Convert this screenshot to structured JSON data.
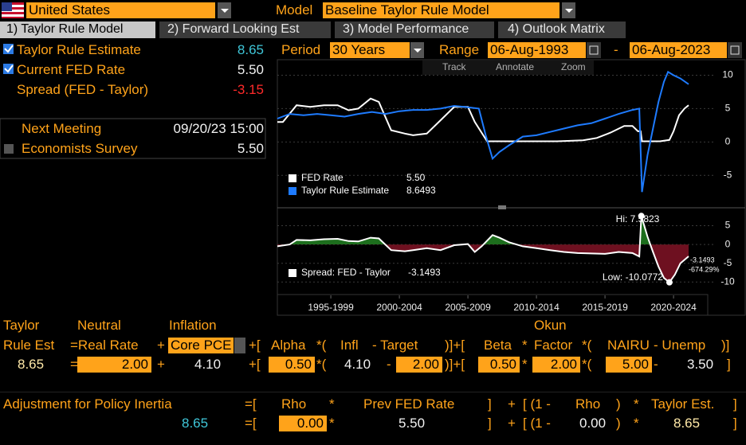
{
  "header": {
    "country": "United States",
    "model_label": "Model",
    "model": "Baseline Taylor Rule Model"
  },
  "tabs": [
    "1) Taylor Rule Model",
    "2) Forward Looking Est",
    "3) Model Performance",
    "4) Outlook Matrix"
  ],
  "summary": {
    "rows": [
      {
        "label": "Taylor Rule Estimate",
        "value": "8.65"
      },
      {
        "label": "Current FED Rate",
        "value": "5.50"
      },
      {
        "label": "Spread (FED - Taylor)",
        "value": "-3.15"
      }
    ],
    "next_meeting": {
      "label": "Next Meeting",
      "value": "09/20/23 15:00"
    },
    "survey": {
      "label": "Economists Survey",
      "value": "5.50"
    }
  },
  "controls": {
    "period_label": "Period",
    "period": "30 Years",
    "range_label": "Range",
    "start": "06-Aug-1993",
    "dash": "-",
    "end": "06-Aug-2023",
    "tools": [
      "Track",
      "Annotate",
      "Zoom"
    ]
  },
  "chart_data": [
    {
      "type": "line",
      "xlim": [
        1993.6,
        2023.6
      ],
      "ylim": [
        -9.5,
        12.2
      ],
      "yticks": [
        10,
        5,
        0,
        -5
      ],
      "grid": true,
      "series": [
        {
          "name": "FED Rate",
          "color": "#ffffff",
          "legend_value": "5.50",
          "x": [
            1993.6,
            1994.0,
            1994.5,
            1995.0,
            1996.0,
            1997.0,
            1998.0,
            1998.8,
            1999.5,
            2000.4,
            2001.0,
            2001.9,
            2002.9,
            2003.5,
            2004.5,
            2005.5,
            2006.5,
            2007.5,
            2008.0,
            2008.9,
            2010.0,
            2012.0,
            2014.0,
            2015.9,
            2016.9,
            2017.9,
            2018.9,
            2019.5,
            2019.9,
            2020.1,
            2020.2,
            2021.5,
            2022.2,
            2022.5,
            2022.9,
            2023.3,
            2023.6
          ],
          "values": [
            3.0,
            3.0,
            4.25,
            5.5,
            5.25,
            5.5,
            5.5,
            4.75,
            5.0,
            6.5,
            6.0,
            1.75,
            1.25,
            1.0,
            1.25,
            3.25,
            5.25,
            5.25,
            3.0,
            0.1,
            0.1,
            0.1,
            0.1,
            0.25,
            0.6,
            1.4,
            2.4,
            2.4,
            1.6,
            1.6,
            0.1,
            0.1,
            0.3,
            1.6,
            4.0,
            5.0,
            5.5
          ]
        },
        {
          "name": "Taylor Rule Estimate",
          "color": "#1e7bff",
          "legend_value": "8.6493",
          "x": [
            1993.6,
            1994.5,
            1995.5,
            1996.5,
            1997.5,
            1998.5,
            1999.5,
            2000.5,
            2001.5,
            2002.5,
            2003.5,
            2004.5,
            2005.5,
            2006.5,
            2007.5,
            2008.3,
            2008.8,
            2009.3,
            2009.8,
            2010.5,
            2011.5,
            2012.5,
            2013.5,
            2014.5,
            2015.5,
            2016.5,
            2017.5,
            2018.5,
            2019.5,
            2020.0,
            2020.2,
            2020.6,
            2021.0,
            2021.4,
            2021.8,
            2022.1,
            2022.5,
            2023.0,
            2023.6
          ],
          "values": [
            3.5,
            4.2,
            4.0,
            4.2,
            4.0,
            3.8,
            4.2,
            4.5,
            4.2,
            4.6,
            4.8,
            4.8,
            5.0,
            5.4,
            5.2,
            5.0,
            1.0,
            -2.5,
            -1.5,
            -0.5,
            0.8,
            1.0,
            1.5,
            2.0,
            2.5,
            2.8,
            3.5,
            4.2,
            4.8,
            5.0,
            -7.5,
            -2.0,
            2.0,
            6.0,
            9.0,
            10.5,
            10.0,
            9.5,
            8.65
          ]
        }
      ]
    },
    {
      "type": "area",
      "xlim": [
        1993.6,
        2023.6
      ],
      "ylim": [
        -12.9,
        8.7
      ],
      "yticks": [
        5,
        0,
        -5,
        -10
      ],
      "grid": true,
      "xticks": [
        {
          "value": 1997.5,
          "label": "1995-1999"
        },
        {
          "value": 2002.5,
          "label": "2000-2004"
        },
        {
          "value": 2007.5,
          "label": "2005-2009"
        },
        {
          "value": 2012.5,
          "label": "2010-2014"
        },
        {
          "value": 2017.5,
          "label": "2015-2019"
        },
        {
          "value": 2022.5,
          "label": "2020-2024"
        }
      ],
      "series": [
        {
          "name": "Spread: FED - Taylor",
          "color": "#ffffff",
          "positive_color": "#1d6e1d",
          "negative_color": "#6e1020",
          "legend_value": "-3.1493",
          "x": [
            1993.6,
            1994.5,
            1995.0,
            1996.0,
            1997.0,
            1998.0,
            1998.8,
            1999.5,
            2000.4,
            2001.0,
            2001.9,
            2002.9,
            2003.5,
            2004.5,
            2005.5,
            2006.5,
            2007.5,
            2008.0,
            2008.5,
            2009.3,
            2009.8,
            2010.5,
            2011.5,
            2012.5,
            2013.5,
            2014.5,
            2015.5,
            2016.5,
            2017.5,
            2018.5,
            2019.5,
            2020.0,
            2020.15,
            2020.6,
            2021.0,
            2021.4,
            2021.8,
            2022.2,
            2022.6,
            2023.0,
            2023.6
          ],
          "values": [
            -0.5,
            0,
            1.2,
            1.1,
            1.4,
            1.5,
            0.9,
            0.8,
            1.8,
            1.6,
            -1.5,
            -1.8,
            -1.5,
            -1.0,
            -1.5,
            -0.2,
            0.1,
            -2.0,
            -0.5,
            2.5,
            1.8,
            0.6,
            -0.5,
            -1.0,
            -1.5,
            -2.0,
            -2.3,
            -2.4,
            -2.5,
            -2.0,
            -2.3,
            -3.2,
            7.58,
            2.1,
            -2.0,
            -5.9,
            -8.9,
            -10.08,
            -8.0,
            -5.0,
            -3.15
          ]
        }
      ],
      "annotations": {
        "high": "Hi: 7.5823",
        "low": "Low: -10.0772",
        "last": "-3.1493",
        "change": "-674.29%"
      }
    }
  ],
  "formula": {
    "headers": [
      "Taylor",
      "Neutral",
      "Inflation",
      "Okun"
    ],
    "terms": [
      "Rule Est",
      "=Real Rate",
      "+",
      "Core PCE",
      "+[",
      "Alpha",
      "*(",
      "Infl",
      "- Target",
      ")]+[",
      "Beta",
      "*",
      "Factor",
      "*(",
      "NAIRU",
      "- Unemp",
      ")]"
    ],
    "values": [
      "8.65",
      "=",
      "2.00",
      "+",
      "4.10",
      "+[",
      "0.50",
      "*(",
      "4.10",
      "-",
      "2.00",
      ")]+[",
      "0.50",
      "*",
      "2.00",
      "*(",
      "5.00",
      "-",
      "3.50",
      "]"
    ],
    "inertia_terms": [
      "Adjustment for Policy Inertia",
      "=[",
      "Rho",
      "*",
      "Prev FED Rate",
      "]",
      "+",
      "[ (1 -",
      "Rho",
      ")",
      "*",
      "Taylor Est.",
      "]"
    ],
    "inertia_values": [
      "8.65",
      "=[",
      "0.00",
      "*",
      "5.50",
      "]",
      "+",
      "[ (1 -",
      "0.00",
      ")",
      "*",
      "8.65",
      "]"
    ]
  }
}
